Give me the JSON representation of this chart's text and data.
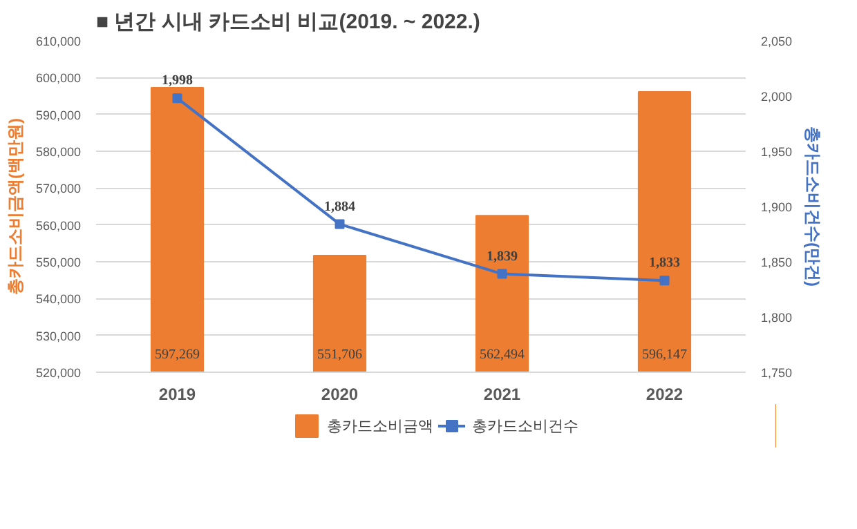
{
  "chart_data": {
    "type": "bar",
    "title": "■ 년간 시내 카드소비 비교(2019. ~ 2022.)",
    "ylabel": "총카드소비금액(백만원)",
    "y2label": "총카드소비건수(만건)",
    "categories": [
      "2019",
      "2020",
      "2021",
      "2022"
    ],
    "series": [
      {
        "name": "총카드소비금액",
        "color": "#ed7d31",
        "values": [
          597269,
          551706,
          562494,
          596147
        ],
        "value_labels": [
          "597,269",
          "551,706",
          "562,494",
          "596,147"
        ]
      },
      {
        "name": "총카드소비건수",
        "type": "line",
        "axis": "y2",
        "color": "#4472c4",
        "marker": "square",
        "values": [
          1998,
          1884,
          1839,
          1833
        ],
        "value_labels": [
          "1,998",
          "1,884",
          "1,839",
          "1,833"
        ]
      }
    ],
    "ylim": [
      520000,
      610000
    ],
    "yticks": [
      {
        "value": 520000,
        "label": "520,000"
      },
      {
        "value": 530000,
        "label": "530,000"
      },
      {
        "value": 540000,
        "label": "540,000"
      },
      {
        "value": 550000,
        "label": "550,000"
      },
      {
        "value": 560000,
        "label": "560,000"
      },
      {
        "value": 570000,
        "label": "570,000"
      },
      {
        "value": 580000,
        "label": "580,000"
      },
      {
        "value": 590000,
        "label": "590,000"
      },
      {
        "value": 600000,
        "label": "600,000"
      },
      {
        "value": 610000,
        "label": "610,000"
      }
    ],
    "y2lim": [
      1750,
      2050
    ],
    "y2ticks": [
      {
        "value": 1750,
        "label": "1,750"
      },
      {
        "value": 1800,
        "label": "1,800"
      },
      {
        "value": 1850,
        "label": "1,850"
      },
      {
        "value": 1900,
        "label": "1,900"
      },
      {
        "value": 1950,
        "label": "1,950"
      },
      {
        "value": 2000,
        "label": "2,000"
      },
      {
        "value": 2050,
        "label": "2,050"
      }
    ],
    "grid": "y",
    "legend": "bottom"
  }
}
